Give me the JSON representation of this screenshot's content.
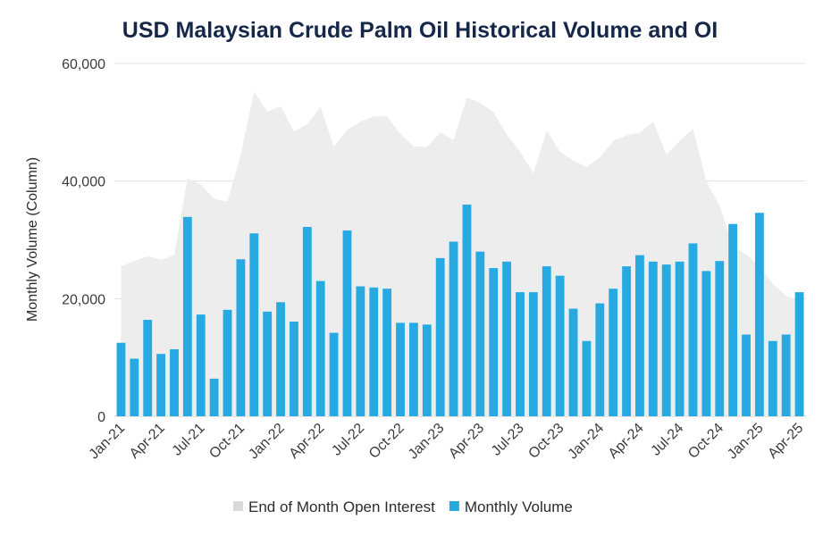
{
  "chart_data": {
    "type": "bar",
    "title": "USD Malaysian Crude Palm Oil Historical Volume and OI",
    "xlabel": "",
    "ylabel": "Monthly Volume (Column)",
    "ylim": [
      0,
      60000
    ],
    "yticks": [
      0,
      20000,
      40000,
      60000
    ],
    "ytick_labels": [
      "0",
      "20,000",
      "40,000",
      "60,000"
    ],
    "grid": true,
    "legend_position": "bottom",
    "x": [
      "Jan-21",
      "Feb-21",
      "Mar-21",
      "Apr-21",
      "May-21",
      "Jun-21",
      "Jul-21",
      "Aug-21",
      "Sep-21",
      "Oct-21",
      "Nov-21",
      "Dec-21",
      "Jan-22",
      "Feb-22",
      "Mar-22",
      "Apr-22",
      "May-22",
      "Jun-22",
      "Jul-22",
      "Aug-22",
      "Sep-22",
      "Oct-22",
      "Nov-22",
      "Dec-22",
      "Jan-23",
      "Feb-23",
      "Mar-23",
      "Apr-23",
      "May-23",
      "Jun-23",
      "Jul-23",
      "Aug-23",
      "Sep-23",
      "Oct-23",
      "Nov-23",
      "Dec-23",
      "Jan-24",
      "Feb-24",
      "Mar-24",
      "Apr-24",
      "May-24",
      "Jun-24",
      "Jul-24",
      "Aug-24",
      "Sep-24",
      "Oct-24",
      "Nov-24",
      "Dec-24",
      "Jan-25",
      "Feb-25",
      "Mar-25",
      "Apr-25"
    ],
    "xtick_labels": [
      "Jan-21",
      "Apr-21",
      "Jul-21",
      "Oct-21",
      "Jan-22",
      "Apr-22",
      "Jul-22",
      "Oct-22",
      "Jan-23",
      "Apr-23",
      "Jul-23",
      "Oct-23",
      "Jan-24",
      "Apr-24",
      "Jul-24",
      "Oct-24",
      "Jan-25",
      "Apr-25"
    ],
    "series": [
      {
        "name": "End of Month Open Interest",
        "type": "area",
        "color": "#ededee",
        "values": [
          25500,
          26400,
          27200,
          26600,
          27400,
          40500,
          39400,
          37000,
          36500,
          44500,
          55200,
          51800,
          52700,
          48400,
          49700,
          52600,
          45800,
          48700,
          50100,
          51000,
          51000,
          48000,
          45900,
          45800,
          48200,
          47000,
          54200,
          53300,
          51700,
          47900,
          45000,
          41300,
          48600,
          45000,
          43500,
          42400,
          44000,
          46800,
          47800,
          48200,
          50100,
          44500,
          46800,
          48900,
          40000,
          35800,
          29000,
          27500,
          25500,
          22500,
          20500,
          19500
        ]
      },
      {
        "name": "Monthly Volume",
        "type": "bar",
        "color": "#27a9e1",
        "values": [
          12500,
          9800,
          16400,
          10600,
          11400,
          33900,
          17300,
          6400,
          18100,
          26700,
          31100,
          17800,
          19400,
          16100,
          32200,
          23000,
          14200,
          31600,
          22100,
          21900,
          21700,
          15900,
          15900,
          15600,
          26900,
          29700,
          36000,
          28000,
          25200,
          26300,
          21100,
          21100,
          25500,
          23900,
          18300,
          12800,
          19200,
          21700,
          25500,
          27400,
          26300,
          25800,
          26300,
          29400,
          24700,
          26400,
          32700,
          13900,
          34600,
          12800,
          13900,
          21100
        ]
      }
    ]
  }
}
